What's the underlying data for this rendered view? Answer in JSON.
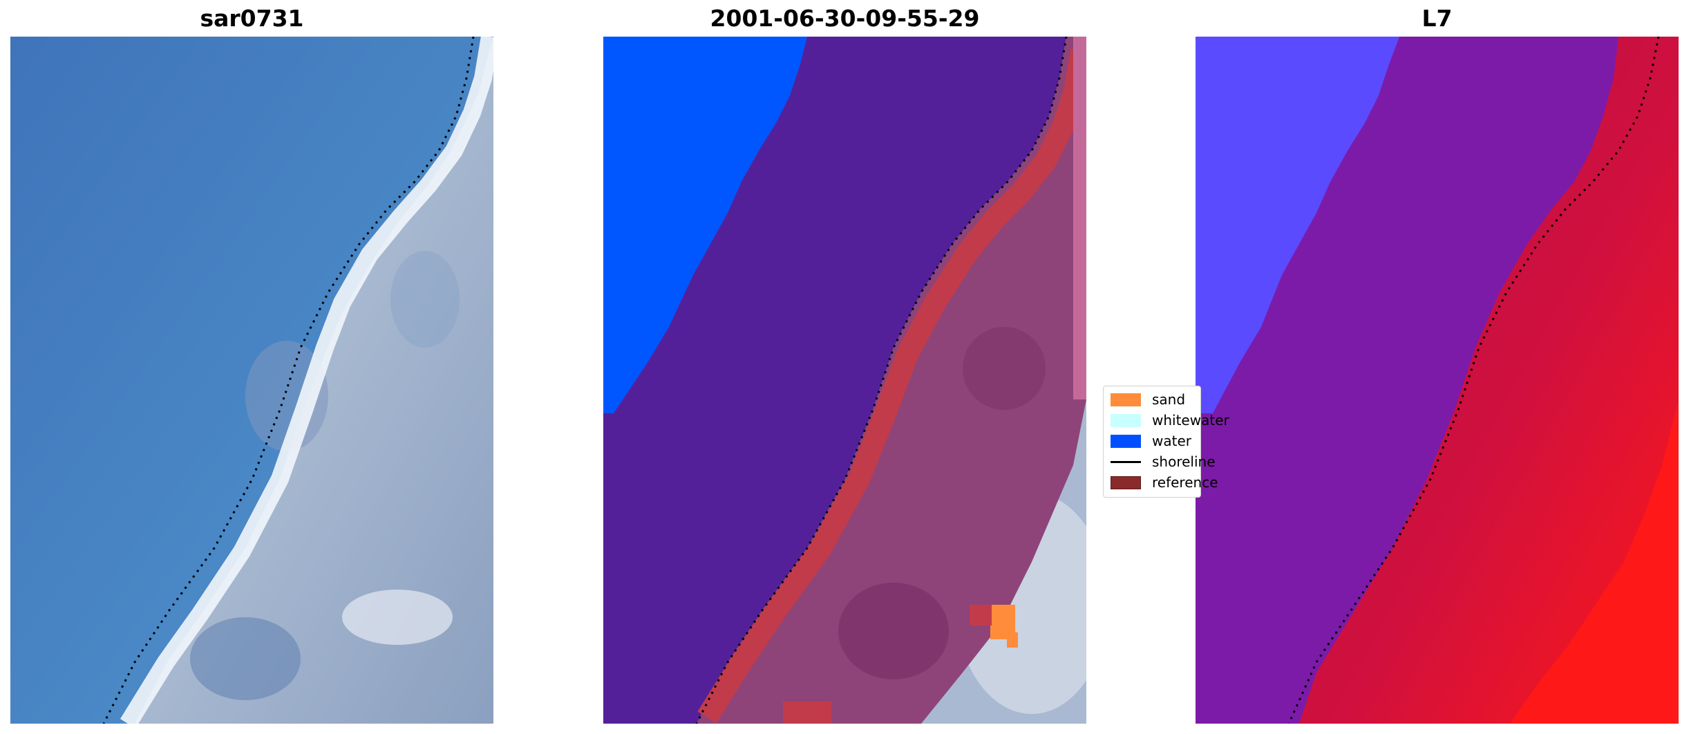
{
  "panels": [
    {
      "title": "sar0731"
    },
    {
      "title": "2001-06-30-09-55-29"
    },
    {
      "title": "L7"
    }
  ],
  "legend": {
    "items": [
      {
        "label": "sand",
        "color": "#ff8c3a",
        "kind": "patch"
      },
      {
        "label": "whitewater",
        "color": "#c8ffff",
        "kind": "patch"
      },
      {
        "label": "water",
        "color": "#0050ff",
        "kind": "patch"
      },
      {
        "label": "shoreline",
        "color": "#000000",
        "kind": "line"
      },
      {
        "label": "reference",
        "color": "#8b2a2a",
        "kind": "patch"
      }
    ]
  },
  "colors": {
    "sea": "#4f8bc7",
    "beach": "#aab8cf",
    "whitewater_band": "#f2f6fb",
    "classified_water": "#0057ff",
    "classified_sea_overlay": "#54209a",
    "classified_shore_band": "#c23b4a",
    "classified_land_overlay": "#8e4479",
    "classified_sand": "#ff8c3a",
    "prob_water": "#5a4bff",
    "prob_mixed": "#7c1ba8",
    "prob_land": "#d0103e",
    "prob_land_bright": "#ff1818"
  }
}
